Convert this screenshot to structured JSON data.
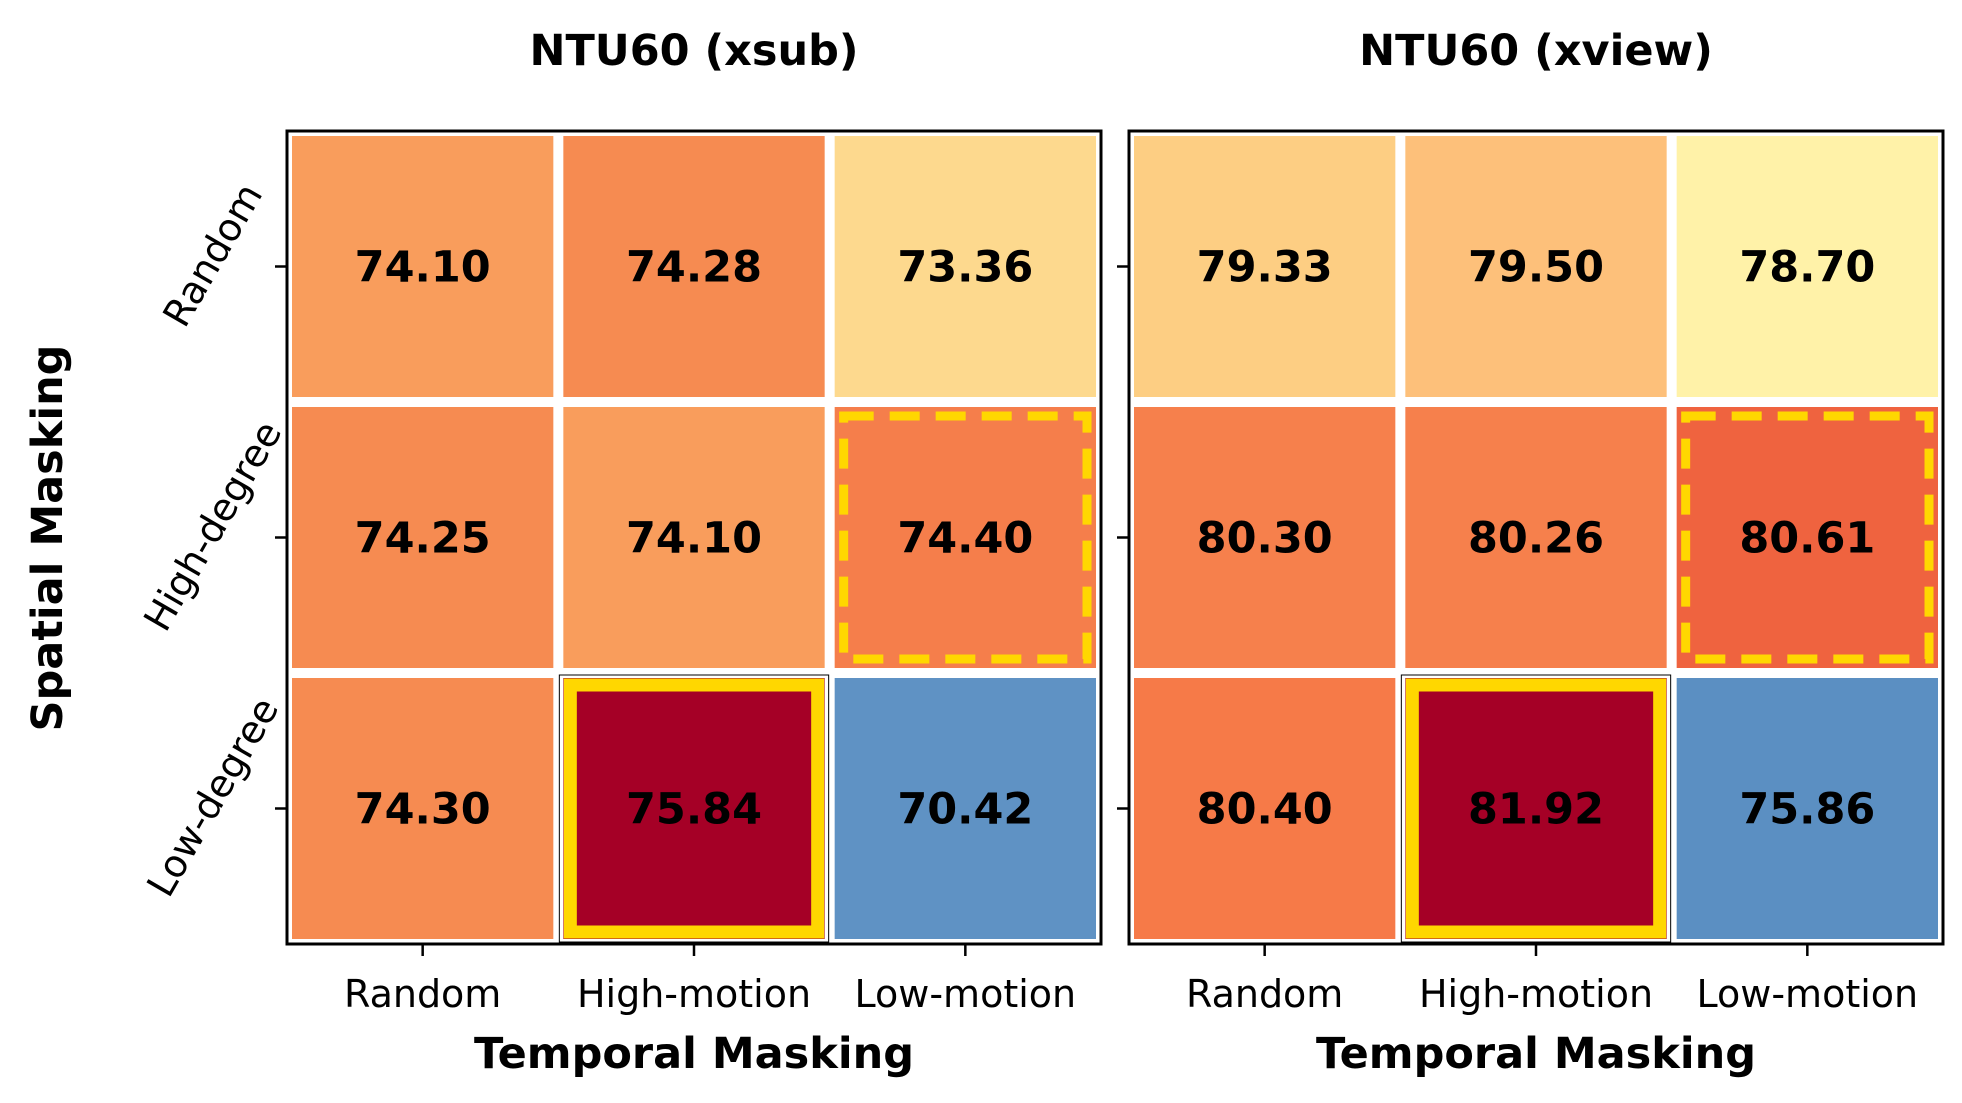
{
  "chart_data": [
    {
      "type": "heatmap",
      "title": "NTU60 (xsub)",
      "xlabel": "Temporal Masking",
      "ylabel": "Spatial Masking",
      "x_categories": [
        "Random",
        "High-motion",
        "Low-motion"
      ],
      "y_categories": [
        "Random",
        "High-degree",
        "Low-degree"
      ],
      "values": [
        [
          "74.10",
          "74.28",
          "73.36"
        ],
        [
          "74.25",
          "74.10",
          "74.40"
        ],
        [
          "74.30",
          "75.84",
          "70.42"
        ]
      ],
      "colors": [
        [
          "#f99d5c",
          "#f68b51",
          "#fdd98e"
        ],
        [
          "#f68b51",
          "#f99d5c",
          "#f57e4b"
        ],
        [
          "#f68b51",
          "#a50026",
          "#5f92c4"
        ]
      ],
      "highlight_solid": [
        2,
        1
      ],
      "highlight_dashed": [
        1,
        2
      ],
      "highlight_color": "#ffd700"
    },
    {
      "type": "heatmap",
      "title": "NTU60 (xview)",
      "xlabel": "Temporal Masking",
      "ylabel": "",
      "x_categories": [
        "Random",
        "High-motion",
        "Low-motion"
      ],
      "y_categories": [
        "Random",
        "High-degree",
        "Low-degree"
      ],
      "values": [
        [
          "79.33",
          "79.50",
          "78.70"
        ],
        [
          "80.30",
          "80.26",
          "80.61"
        ],
        [
          "80.40",
          "81.92",
          "75.86"
        ]
      ],
      "colors": [
        [
          "#fdce83",
          "#fdc07a",
          "#fff2a8"
        ],
        [
          "#f6804c",
          "#f6804c",
          "#ef633f"
        ],
        [
          "#f67a48",
          "#a50026",
          "#5b8fc2"
        ]
      ],
      "highlight_solid": [
        2,
        1
      ],
      "highlight_dashed": [
        1,
        2
      ],
      "highlight_color": "#ffd700"
    }
  ]
}
